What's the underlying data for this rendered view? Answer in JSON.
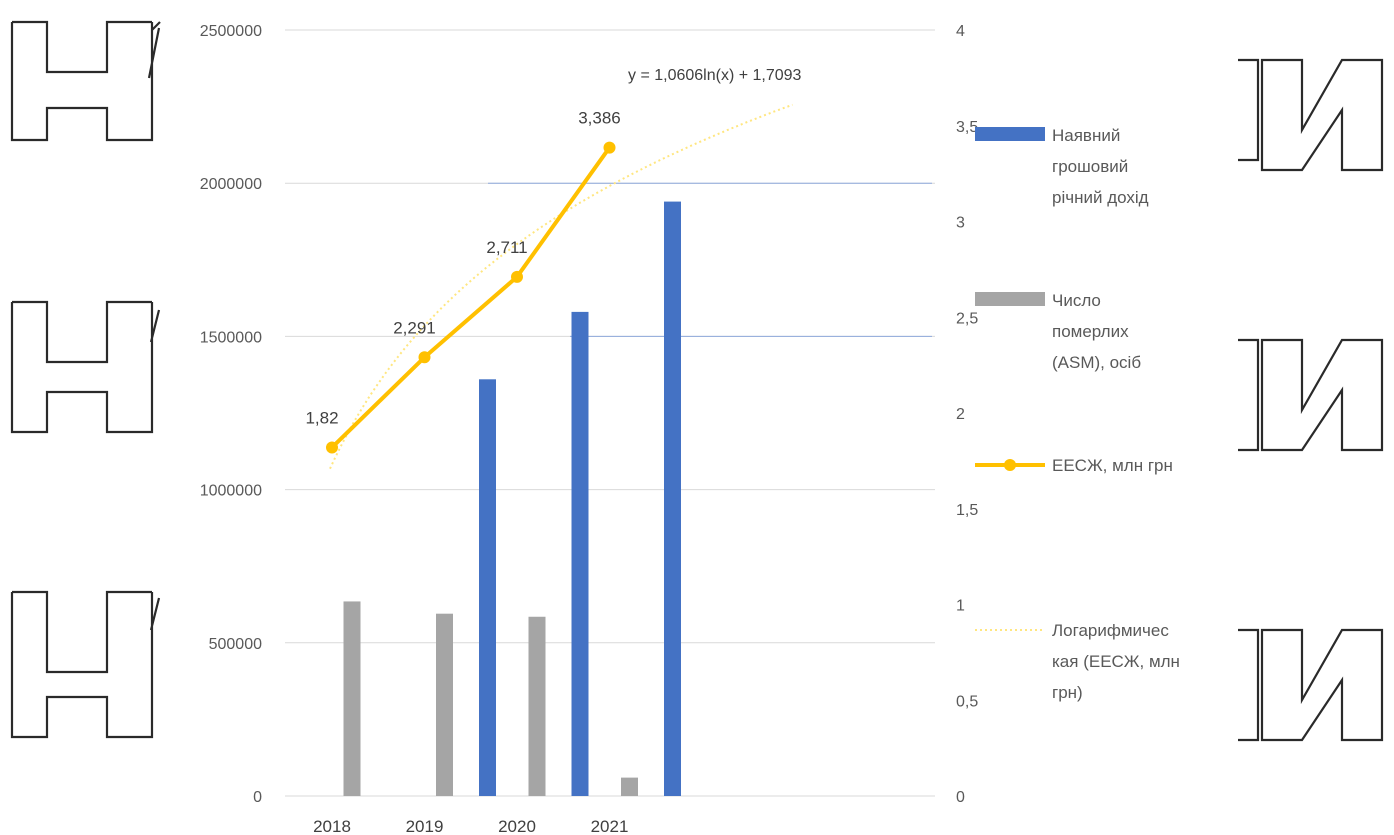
{
  "chart_data": {
    "type": "bar",
    "categories": [
      "2018",
      "2019",
      "2020",
      "2021"
    ],
    "series": [
      {
        "name": "Наявний грошовий річний дохід",
        "kind": "bar",
        "axis": "left",
        "color": "#4472C4",
        "values": [
          null,
          1360000,
          1580000,
          1940000
        ]
      },
      {
        "name": "Число померлих (ASM), осіб",
        "kind": "bar",
        "axis": "left",
        "color": "#A5A5A5",
        "values": [
          635000,
          595000,
          585000,
          60000
        ]
      },
      {
        "name": "ЕЕСЖ, млн грн",
        "kind": "line",
        "axis": "right",
        "color": "#FFC000",
        "values": [
          1.82,
          2.291,
          2.711,
          3.386
        ],
        "data_labels": [
          "1,82",
          "2,291",
          "2,711",
          "3,386"
        ]
      },
      {
        "name": "Логарифмическая (ЕЕСЖ, млн грн)",
        "kind": "trendline",
        "axis": "right",
        "color": "#FFE680",
        "equation": "y = 1,0606ln(x) + 1,7093",
        "a": 1.0606,
        "b": 1.7093,
        "x_range": [
          0.8,
          6.0
        ]
      }
    ],
    "left_axis": {
      "min": 0,
      "max": 2500000,
      "ticks": [
        "0",
        "500000",
        "1000000",
        "1500000",
        "2000000",
        "2500000"
      ]
    },
    "right_axis": {
      "min": 0,
      "max": 4,
      "ticks": [
        "0",
        "0,5",
        "1",
        "1,5",
        "2",
        "2,5",
        "3",
        "3,5",
        "4"
      ]
    },
    "legend": {
      "placement": "right",
      "items": [
        {
          "lines": [
            "Наявний",
            "грошовий",
            "річний дохід"
          ],
          "color": "#4472C4",
          "style": "bar"
        },
        {
          "lines": [
            "Число",
            "померлих",
            "(ASM), осіб"
          ],
          "color": "#A5A5A5",
          "style": "bar"
        },
        {
          "lines": [
            "ЕЕСЖ, млн грн"
          ],
          "color": "#FFC000",
          "style": "line-marker"
        },
        {
          "lines": [
            "Логарифмичес",
            "кая (ЕЕСЖ, млн",
            "грн)"
          ],
          "color": "#FFE680",
          "style": "dotted"
        }
      ]
    },
    "grid": true
  }
}
